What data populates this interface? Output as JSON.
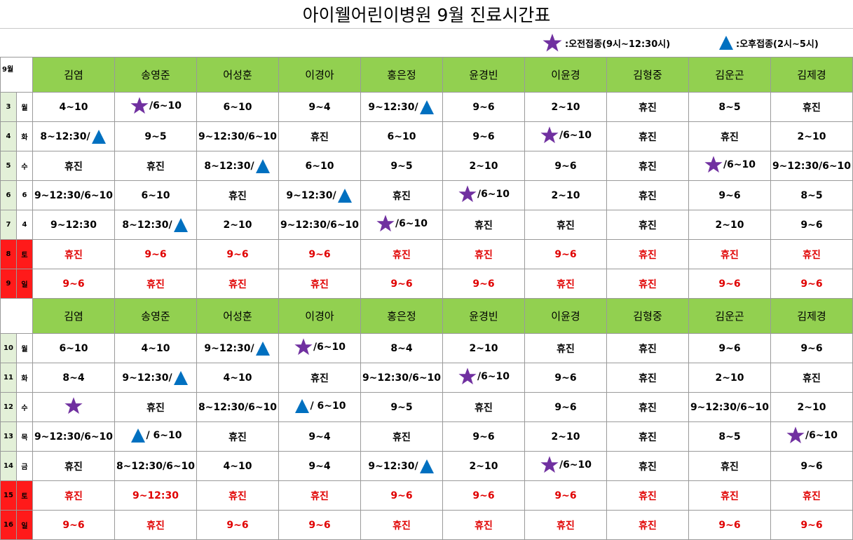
{
  "title": "아이웰어린이병원 9월 진료시간표",
  "legend": {
    "am": {
      "label": ":오전접종(9시~12:30시)",
      "icon": "star-icon",
      "color": "#7030a0"
    },
    "pm": {
      "label": ":오후접종(2시~5시)",
      "icon": "triangle-icon",
      "color": "#0070c0"
    }
  },
  "month_label": "9월",
  "doctors": [
    "김염",
    "송영준",
    "어성훈",
    "이경아",
    "홍은정",
    "윤경빈",
    "이윤경",
    "김형중",
    "김운곤",
    "김제경"
  ],
  "week1": [
    {
      "date": "3",
      "day": "월",
      "weekend": false,
      "cells": [
        "4~10",
        "*/6~10",
        "6~10",
        "9~4",
        "9~12:30/^",
        "9~6",
        "2~10",
        "휴진",
        "8~5",
        "휴진"
      ]
    },
    {
      "date": "4",
      "day": "화",
      "weekend": false,
      "cells": [
        "8~12:30/^",
        "9~5",
        "9~12:30/6~10",
        "휴진",
        "6~10",
        "9~6",
        "*/6~10",
        "휴진",
        "휴진",
        "2~10"
      ]
    },
    {
      "date": "5",
      "day": "수",
      "weekend": false,
      "cells": [
        "휴진",
        "휴진",
        "8~12:30/^",
        "6~10",
        "9~5",
        "2~10",
        "9~6",
        "휴진",
        "*/6~10",
        "9~12:30/6~10"
      ]
    },
    {
      "date": "6",
      "day": "6",
      "weekend": false,
      "cells": [
        "9~12:30/6~10",
        "6~10",
        "휴진",
        "9~12:30/^",
        "휴진",
        "*/6~10",
        "2~10",
        "휴진",
        "9~6",
        "8~5"
      ]
    },
    {
      "date": "7",
      "day": "4",
      "weekend": false,
      "cells": [
        "9~12:30",
        "8~12:30/^",
        "2~10",
        "9~12:30/6~10",
        "*/6~10",
        "휴진",
        "휴진",
        "휴진",
        "2~10",
        "9~6"
      ]
    },
    {
      "date": "8",
      "day": "토",
      "weekend": true,
      "cells": [
        "휴진",
        "9~6",
        "9~6",
        "9~6",
        "휴진",
        "휴진",
        "9~6",
        "휴진",
        "휴진",
        "휴진"
      ]
    },
    {
      "date": "9",
      "day": "일",
      "weekend": true,
      "cells": [
        "9~6",
        "휴진",
        "휴진",
        "휴진",
        "9~6",
        "9~6",
        "휴진",
        "휴진",
        "9~6",
        "9~6"
      ]
    }
  ],
  "week2": [
    {
      "date": "10",
      "day": "월",
      "weekend": false,
      "cells": [
        "6~10",
        "4~10",
        "9~12:30/^",
        "*/6~10",
        "8~4",
        "2~10",
        "휴진",
        "휴진",
        "9~6",
        "9~6"
      ]
    },
    {
      "date": "11",
      "day": "화",
      "weekend": false,
      "cells": [
        "8~4",
        "9~12:30/^",
        "4~10",
        "휴진",
        "9~12:30/6~10",
        "*/6~10",
        "9~6",
        "휴진",
        "2~10",
        "휴진"
      ]
    },
    {
      "date": "12",
      "day": "수",
      "weekend": false,
      "cells": [
        "*",
        "휴진",
        "8~12:30/6~10",
        "^ / 6~10",
        "9~5",
        "휴진",
        "9~6",
        "휴진",
        "9~12:30/6~10",
        "2~10"
      ]
    },
    {
      "date": "13",
      "day": "목",
      "weekend": false,
      "cells": [
        "9~12:30/6~10",
        "^ / 6~10",
        "휴진",
        "9~4",
        "휴진",
        "9~6",
        "2~10",
        "휴진",
        "8~5",
        "*/6~10"
      ]
    },
    {
      "date": "14",
      "day": "금",
      "weekend": false,
      "cells": [
        "휴진",
        "8~12:30/6~10",
        "4~10",
        "9~4",
        "9~12:30/^",
        "2~10",
        "*/6~10",
        "휴진",
        "휴진",
        "9~6"
      ]
    },
    {
      "date": "15",
      "day": "토",
      "weekend": true,
      "cells": [
        "휴진",
        "9~12:30",
        "휴진",
        "휴진",
        "9~6",
        "9~6",
        "9~6",
        "휴진",
        "휴진",
        "휴진"
      ]
    },
    {
      "date": "16",
      "day": "일",
      "weekend": true,
      "cells": [
        "9~6",
        "휴진",
        "9~6",
        "9~6",
        "휴진",
        "휴진",
        "휴진",
        "휴진",
        "9~6",
        "9~6"
      ]
    }
  ]
}
